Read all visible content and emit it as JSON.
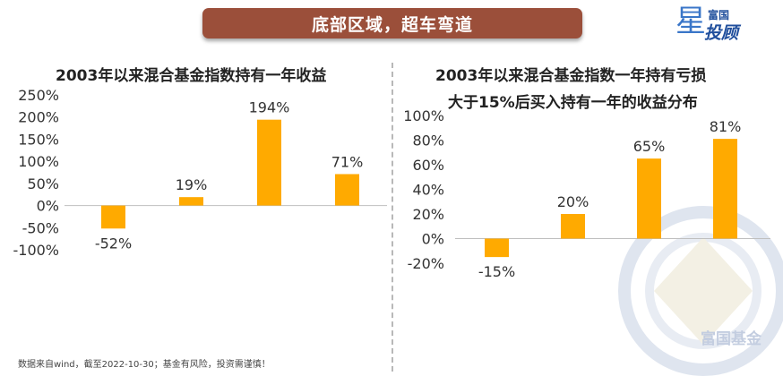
{
  "header": {
    "title": "底部区域，超车弯道"
  },
  "logo": {
    "line1": "富国",
    "line2": "投顾",
    "star_glyph": "星"
  },
  "watermark": {
    "text": "富国基金"
  },
  "footnote": "数据来自wind，截至2022-10-30；基金有风险，投资需谨慎！",
  "colors": {
    "bar": "#FFAA00",
    "title_bar": "#9B4F3A",
    "axis": "#BFBFBF"
  },
  "chart_data": [
    {
      "type": "bar",
      "title": "2003年以来混合基金指数持有一年收益",
      "categories": [
        "",
        "",
        "",
        ""
      ],
      "values": [
        -52,
        19,
        194,
        71
      ],
      "data_labels": [
        "-52%",
        "19%",
        "194%",
        "71%"
      ],
      "ylim": [
        -100,
        250
      ],
      "yticks": [
        -100,
        -50,
        0,
        50,
        100,
        150,
        200,
        250
      ],
      "ytick_labels": [
        "-100%",
        "-50%",
        "0%",
        "50%",
        "100%",
        "150%",
        "200%",
        "250%"
      ],
      "xlabel": "",
      "ylabel": "",
      "grid": false
    },
    {
      "type": "bar",
      "title": "2003年以来混合基金指数一年持有亏损",
      "subtitle": "大于15%后买入持有一年的收益分布",
      "categories": [
        "",
        "",
        "",
        ""
      ],
      "values": [
        -15,
        20,
        65,
        81
      ],
      "data_labels": [
        "-15%",
        "20%",
        "65%",
        "81%"
      ],
      "ylim": [
        -20,
        100
      ],
      "yticks": [
        -20,
        0,
        20,
        40,
        60,
        80,
        100
      ],
      "ytick_labels": [
        "-20%",
        "0%",
        "20%",
        "40%",
        "60%",
        "80%",
        "100%"
      ],
      "xlabel": "",
      "ylabel": "",
      "grid": false
    }
  ]
}
